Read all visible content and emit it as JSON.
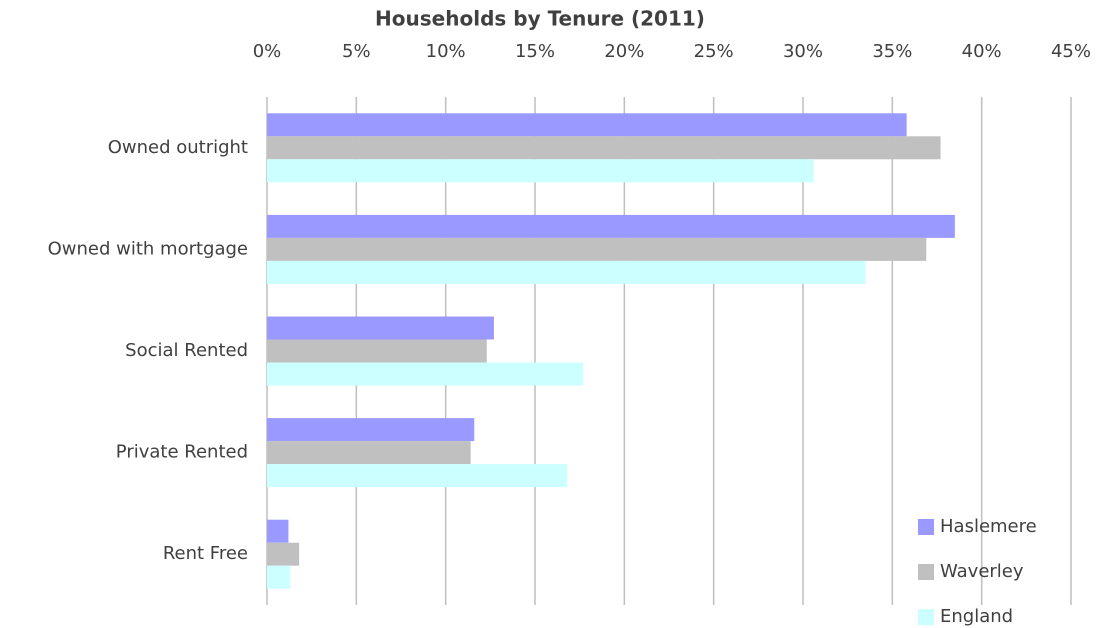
{
  "chart_data": {
    "type": "hbar",
    "title": "Households by Tenure (2011)",
    "categories": [
      "Owned outright",
      "Owned with mortgage",
      "Social Rented",
      "Private Rented",
      "Rent Free"
    ],
    "series": [
      {
        "name": "Haslemere",
        "color": "#9999ff",
        "values": [
          35.8,
          38.5,
          12.7,
          11.6,
          1.2
        ]
      },
      {
        "name": "Waverley",
        "color": "#c0c0c0",
        "values": [
          37.7,
          36.9,
          12.3,
          11.4,
          1.8
        ]
      },
      {
        "name": "England",
        "color": "#ccffff",
        "values": [
          30.6,
          33.5,
          17.7,
          16.8,
          1.3
        ]
      }
    ],
    "xlim": [
      0,
      45
    ],
    "xticks": [
      {
        "value": 0,
        "label": "0%"
      },
      {
        "value": 5,
        "label": "5%"
      },
      {
        "value": 10,
        "label": "10%"
      },
      {
        "value": 15,
        "label": "15%"
      },
      {
        "value": 20,
        "label": "20%"
      },
      {
        "value": 25,
        "label": "25%"
      },
      {
        "value": 30,
        "label": "30%"
      },
      {
        "value": 35,
        "label": "35%"
      },
      {
        "value": 40,
        "label": "40%"
      },
      {
        "value": 45,
        "label": "45%"
      }
    ],
    "grid": true,
    "legend": "lower right"
  }
}
